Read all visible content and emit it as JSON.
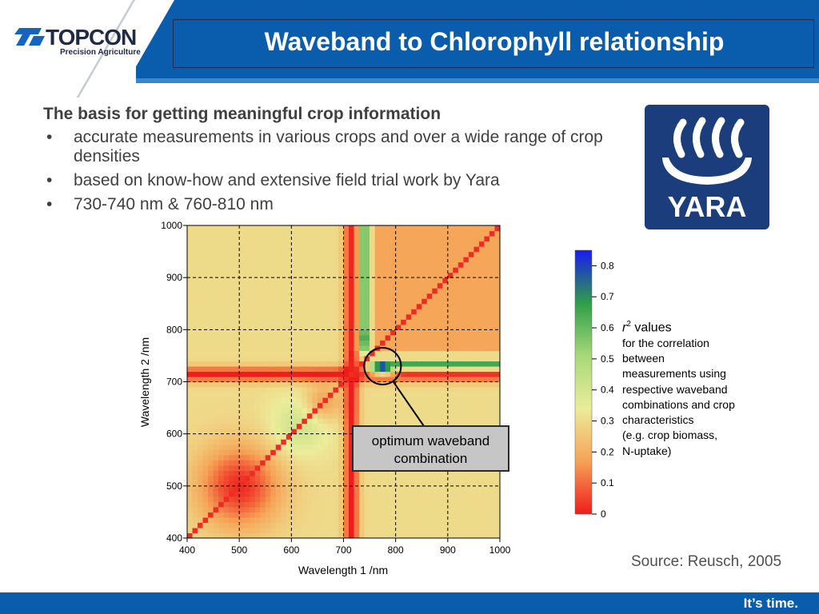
{
  "header": {
    "brand": "TOPCON",
    "brand_sub": "Precision Agriculture",
    "title": "Waveband to Chlorophyll relationship"
  },
  "content": {
    "heading": "The basis for getting meaningful crop information",
    "bullets": [
      "accurate measurements in various crops and over a wide range of crop densities",
      "based on know-how and extensive field trial work by Yara",
      "730-740 nm & 760-810 nm"
    ]
  },
  "yara_logo": {
    "text": "YARA",
    "icon": "viking-ship-icon",
    "color": "#1b3d7c"
  },
  "chart_data": {
    "type": "heatmap",
    "xlabel": "Wavelength 1 /nm",
    "ylabel": "Wavelength 2 /nm",
    "x_ticks": [
      400,
      500,
      600,
      700,
      800,
      900,
      1000
    ],
    "y_ticks": [
      400,
      500,
      600,
      700,
      800,
      900,
      1000
    ],
    "xlim": [
      400,
      1000
    ],
    "ylim": [
      400,
      1000
    ],
    "grid": true,
    "colorbar": {
      "ticks": [
        "0",
        "0.1",
        "0.2",
        "0.3",
        "0.4",
        "0.5",
        "0.6",
        "0.7",
        "0.8"
      ],
      "range": [
        0,
        0.85
      ],
      "colors": [
        "#ee1c1c",
        "#f6a255",
        "#ecec9a",
        "#a8d878",
        "#2e9e4a",
        "#1a1aee"
      ]
    },
    "annotation": {
      "text_line1": "optimum waveband",
      "text_line2": "combination",
      "target_x": 775,
      "target_y": 730
    },
    "legend_note": {
      "r_symbol": "r",
      "r_sup": "2",
      "r_suffix": "values",
      "lines": [
        "for the correlation",
        "between",
        "measurements using",
        "respective waveband",
        "combinations and crop",
        "characteristics",
        "(e.g. crop biomass,",
        "N-uptake)"
      ]
    }
  },
  "source": "Source: Reusch, 2005",
  "footer": {
    "slogan": "It’s time."
  }
}
